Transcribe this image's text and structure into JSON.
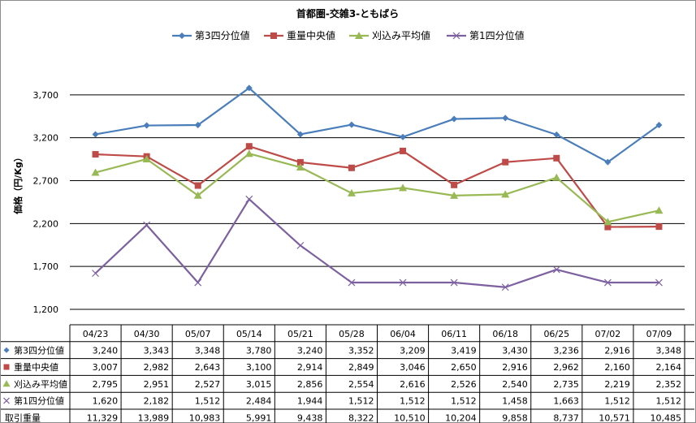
{
  "chart_data": {
    "type": "line",
    "title": "首都圏-交雑3-ともばら",
    "ylabel": "価格（円/Kg）",
    "xlabel": "",
    "ylim": [
      1200,
      4200
    ],
    "yticks": [
      1200,
      1700,
      2200,
      2700,
      3200,
      3700
    ],
    "ytick_labels": [
      "1,200",
      "1,700",
      "2,200",
      "2,700",
      "3,200",
      "3,700"
    ],
    "grid": true,
    "legend_position": "top",
    "categories": [
      "04/23",
      "04/30",
      "05/07",
      "05/14",
      "05/21",
      "05/28",
      "06/04",
      "06/11",
      "06/18",
      "06/25",
      "07/02",
      "07/09"
    ],
    "series": [
      {
        "name": "第3四分位値",
        "color": "#4a7ebb",
        "marker": "diamond",
        "values": [
          3240,
          3343,
          3348,
          3780,
          3240,
          3352,
          3209,
          3419,
          3430,
          3236,
          2916,
          3348
        ],
        "labels": [
          "3,240",
          "3,343",
          "3,348",
          "3,780",
          "3,240",
          "3,352",
          "3,209",
          "3,419",
          "3,430",
          "3,236",
          "2,916",
          "3,348"
        ]
      },
      {
        "name": "重量中央値",
        "color": "#be4b48",
        "marker": "square",
        "values": [
          3007,
          2982,
          2643,
          3100,
          2914,
          2849,
          3046,
          2650,
          2916,
          2962,
          2160,
          2164
        ],
        "labels": [
          "3,007",
          "2,982",
          "2,643",
          "3,100",
          "2,914",
          "2,849",
          "3,046",
          "2,650",
          "2,916",
          "2,962",
          "2,160",
          "2,164"
        ]
      },
      {
        "name": "刈込み平均値",
        "color": "#98b954",
        "marker": "triangle",
        "values": [
          2795,
          2951,
          2527,
          3015,
          2856,
          2554,
          2616,
          2526,
          2540,
          2735,
          2219,
          2352
        ],
        "labels": [
          "2,795",
          "2,951",
          "2,527",
          "3,015",
          "2,856",
          "2,554",
          "2,616",
          "2,526",
          "2,540",
          "2,735",
          "2,219",
          "2,352"
        ]
      },
      {
        "name": "第1四分位値",
        "color": "#7d60a0",
        "marker": "x",
        "values": [
          1620,
          2182,
          1512,
          2484,
          1944,
          1512,
          1512,
          1512,
          1458,
          1663,
          1512,
          1512
        ],
        "labels": [
          "1,620",
          "2,182",
          "1,512",
          "2,484",
          "1,944",
          "1,512",
          "1,512",
          "1,512",
          "1,458",
          "1,663",
          "1,512",
          "1,512"
        ]
      }
    ],
    "table_extra_rows": [
      {
        "name": "取引重量",
        "labels": [
          "11,329",
          "13,989",
          "10,983",
          "5,991",
          "9,438",
          "8,322",
          "10,510",
          "10,204",
          "9,858",
          "8,737",
          "10,571",
          "10,485"
        ]
      }
    ]
  }
}
